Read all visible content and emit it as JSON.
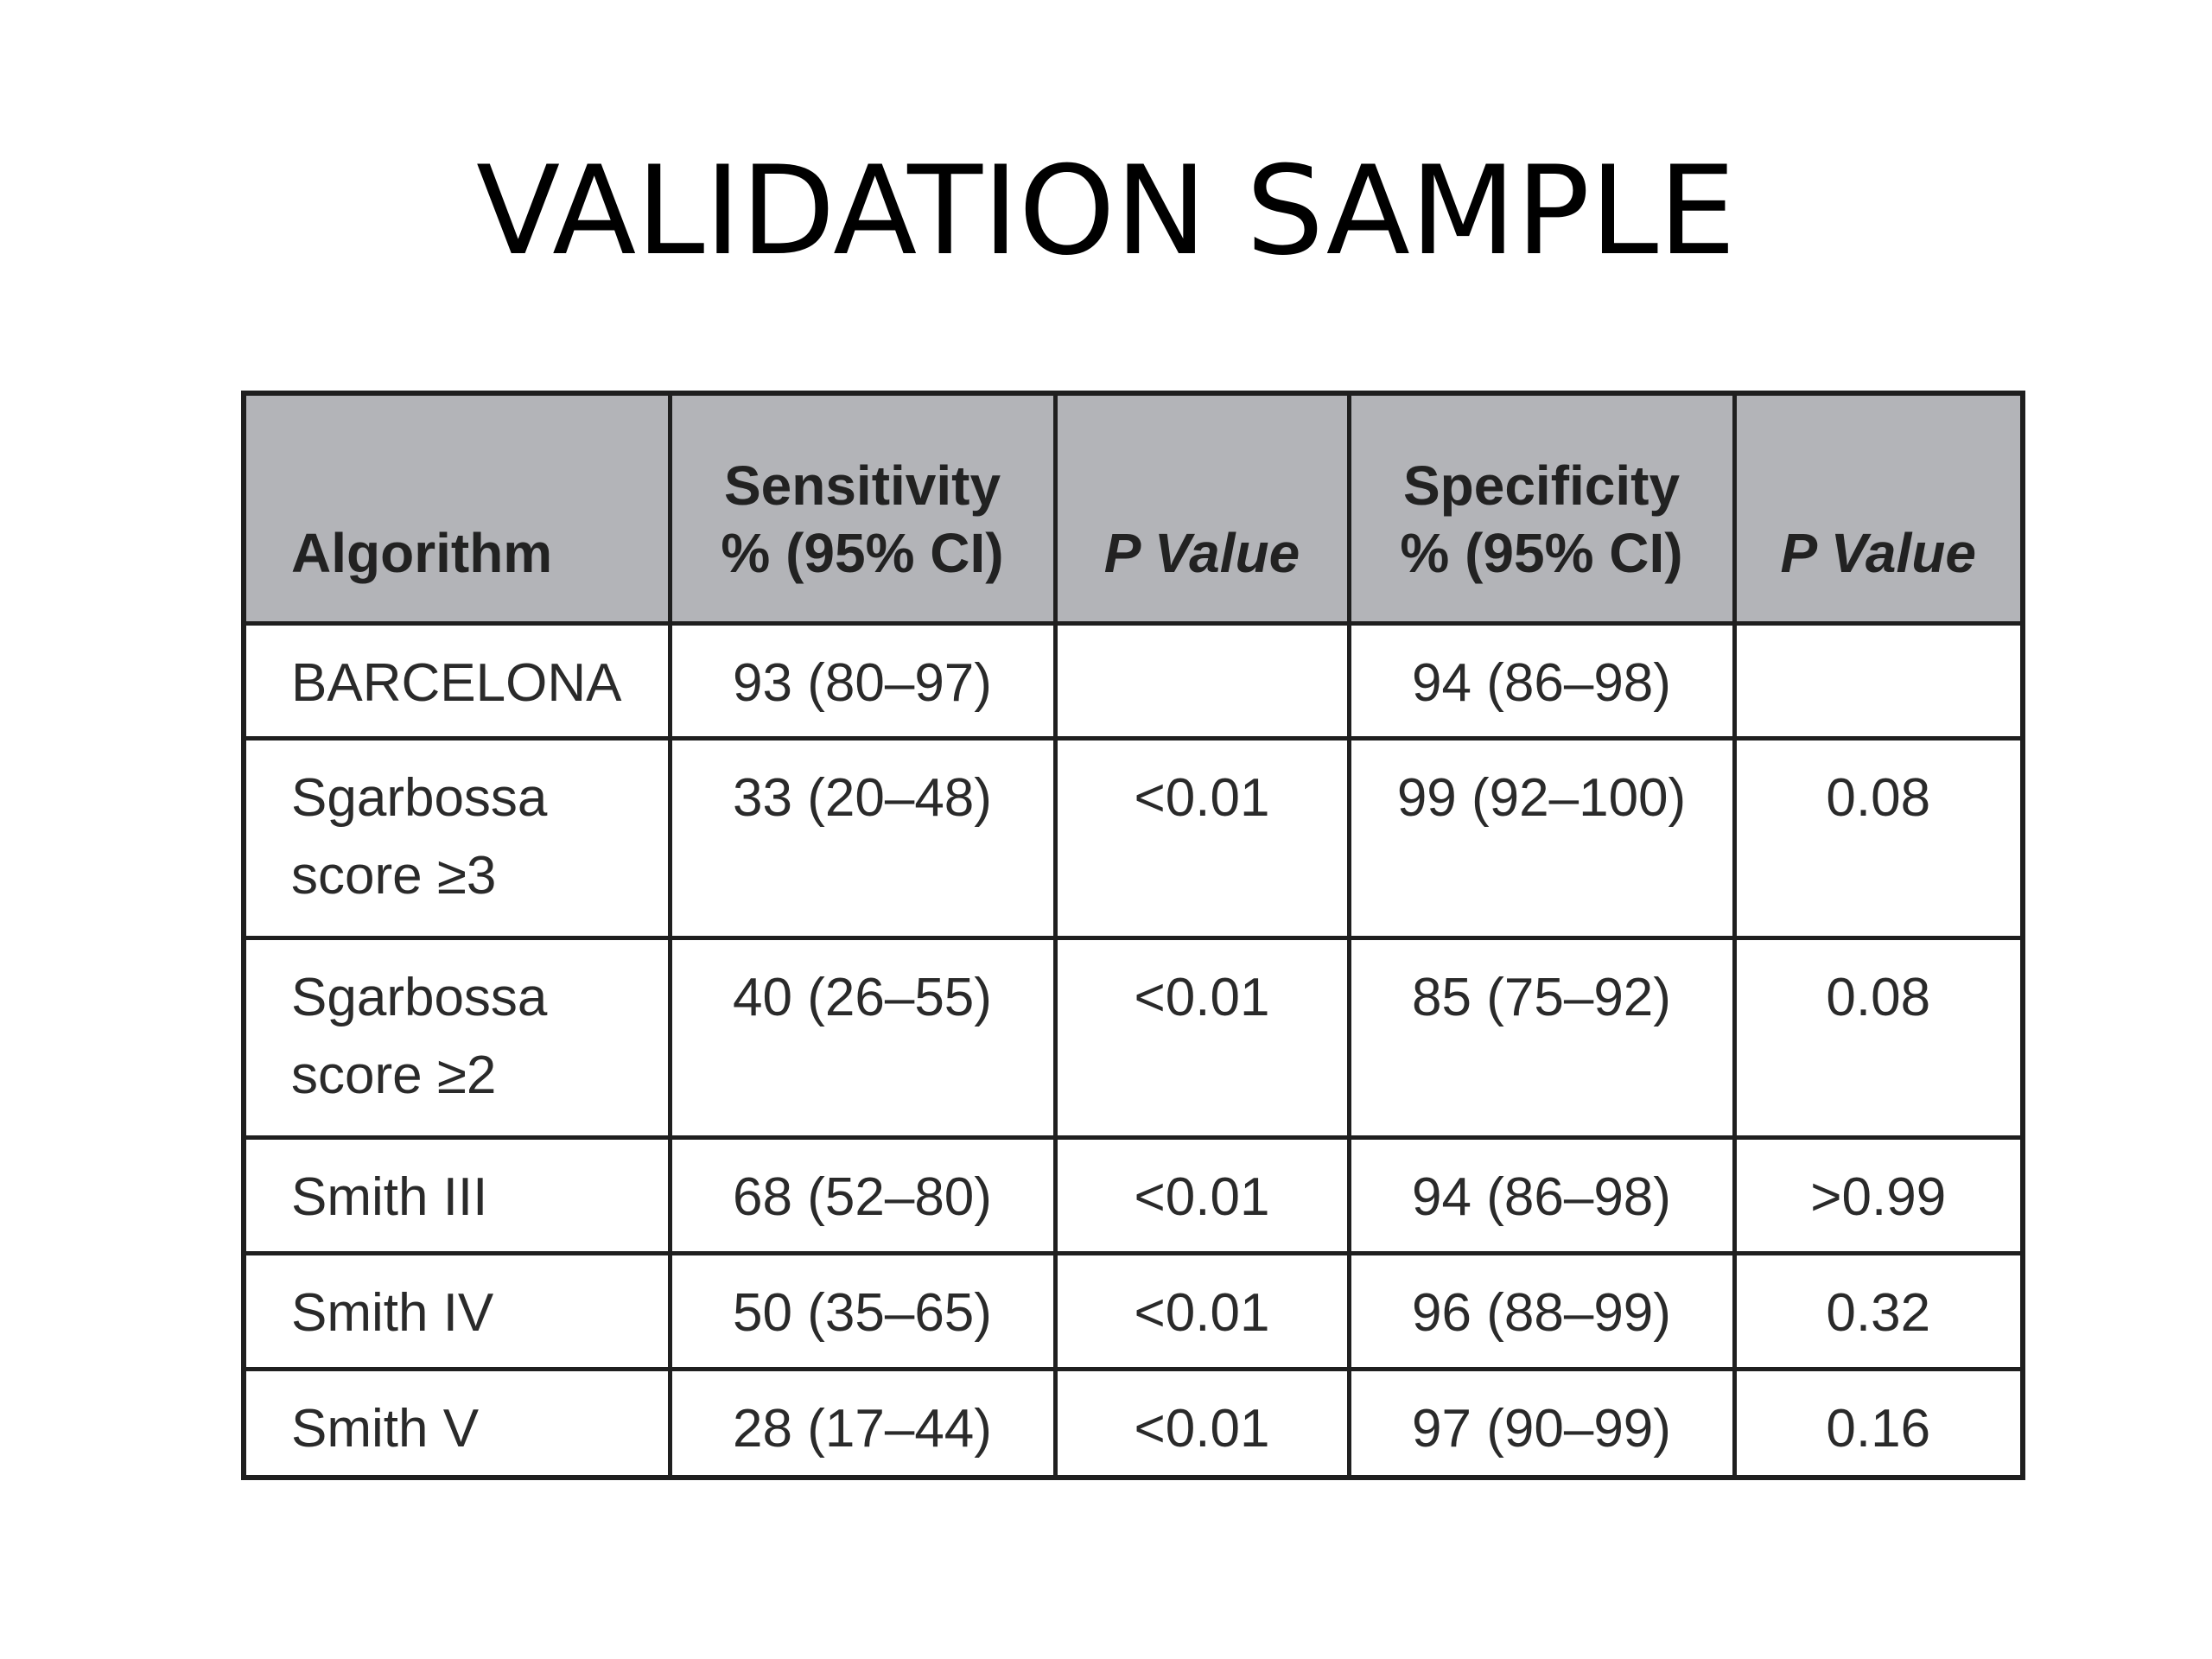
{
  "slide": {
    "title": "VALIDATION SAMPLE"
  },
  "table": {
    "headers": [
      {
        "lines": [
          "Algorithm"
        ]
      },
      {
        "lines": [
          "Sensitivity",
          "% (95% CI)"
        ]
      },
      {
        "lines": [
          "P Value"
        ]
      },
      {
        "lines": [
          "Specificity",
          "% (95% CI)"
        ]
      },
      {
        "lines": [
          "P Value"
        ]
      }
    ],
    "rows": [
      {
        "algorithm": [
          "BARCELONA"
        ],
        "sensitivity": "93 (80–97)",
        "sensitivity_p": "",
        "specificity": "94 (86–98)",
        "specificity_p": ""
      },
      {
        "algorithm": [
          "Sgarbossa",
          "score ≥3"
        ],
        "sensitivity": "33 (20–48)",
        "sensitivity_p": "<0.01",
        "specificity": "99 (92–100)",
        "specificity_p": "0.08"
      },
      {
        "algorithm": [
          "Sgarbossa",
          "score ≥2"
        ],
        "sensitivity": "40 (26–55)",
        "sensitivity_p": "<0.01",
        "specificity": "85 (75–92)",
        "specificity_p": "0.08"
      },
      {
        "algorithm": [
          "Smith III"
        ],
        "sensitivity": "68 (52–80)",
        "sensitivity_p": "<0.01",
        "specificity": "94 (86–98)",
        "specificity_p": ">0.99"
      },
      {
        "algorithm": [
          "Smith IV"
        ],
        "sensitivity": "50 (35–65)",
        "sensitivity_p": "<0.01",
        "specificity": "96 (88–99)",
        "specificity_p": "0.32"
      },
      {
        "algorithm": [
          "Smith V"
        ],
        "sensitivity": "28 (17–44)",
        "sensitivity_p": "<0.01",
        "specificity": "97 (90–99)",
        "specificity_p": "0.16"
      }
    ]
  },
  "colors": {
    "header_background": "#b3b4b8",
    "border": "#1f1f1f",
    "text": "#2a2a2a"
  }
}
